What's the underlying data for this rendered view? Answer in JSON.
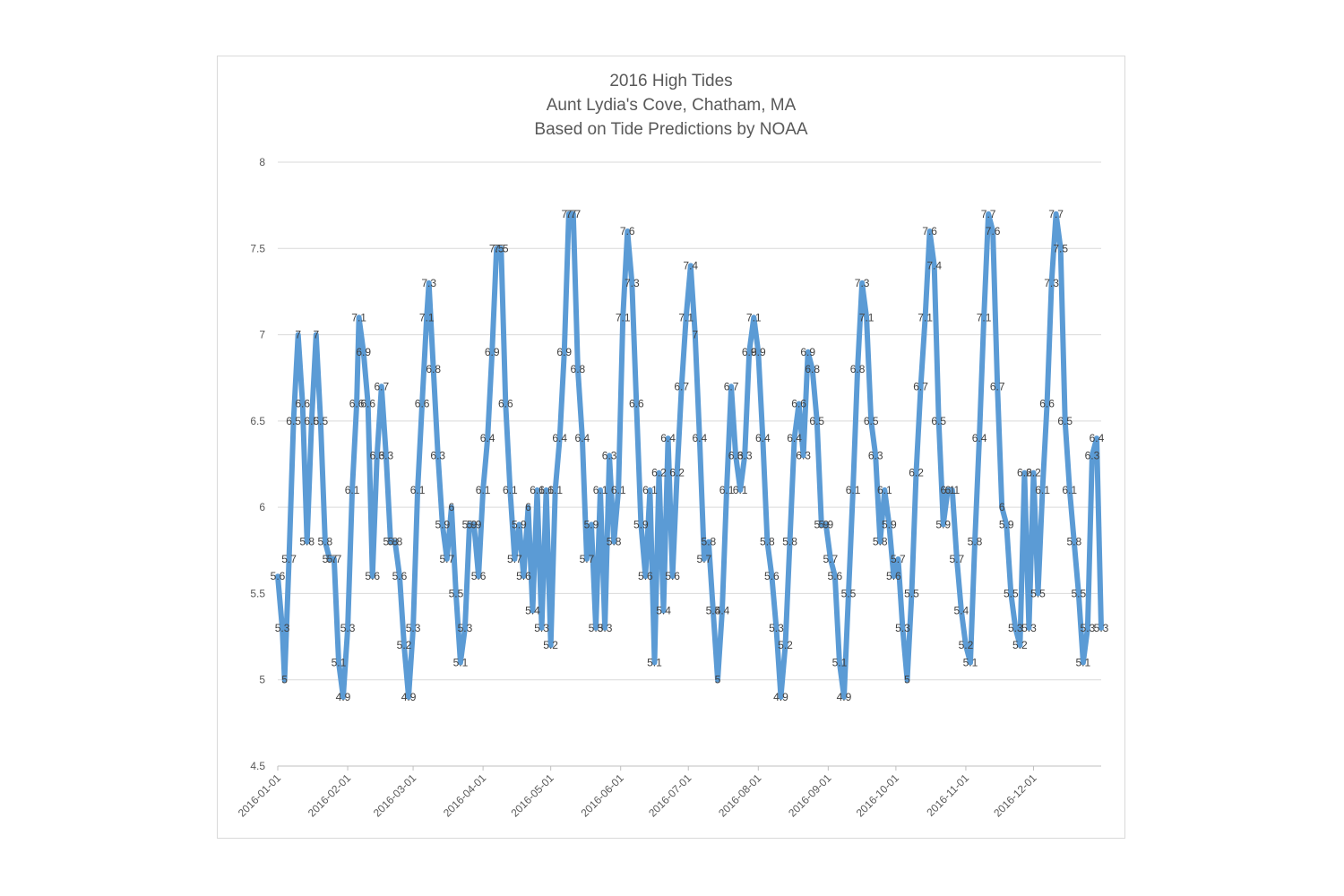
{
  "chart_data": {
    "type": "line",
    "title": [
      "2016 High Tides",
      "Aunt Lydia's Cove, Chatham, MA",
      "Based on Tide Predictions by NOAA"
    ],
    "xlabel": "",
    "ylabel": "",
    "ylim": [
      4.5,
      8
    ],
    "yticks": [
      "4.5",
      "5",
      "5.5",
      "6",
      "6.5",
      "7",
      "7.5",
      "8"
    ],
    "xlim": [
      "2016-01-01",
      "2016-12-31"
    ],
    "xticks": [
      "2016-01-01",
      "2016-02-01",
      "2016-03-01",
      "2016-04-01",
      "2016-05-01",
      "2016-06-01",
      "2016-07-01",
      "2016-08-01",
      "2016-09-01",
      "2016-10-01",
      "2016-11-01",
      "2016-12-01"
    ],
    "grid": true,
    "legend": "none",
    "series_color": "#5b9bd5",
    "label_color": "#404040",
    "series": [
      {
        "points": [
          [
            "2016-01-01",
            5.6
          ],
          [
            "2016-01-03",
            5.3
          ],
          [
            "2016-01-04",
            5.0
          ],
          [
            "2016-01-06",
            5.7
          ],
          [
            "2016-01-08",
            6.5
          ],
          [
            "2016-01-10",
            7.0
          ],
          [
            "2016-01-12",
            6.6
          ],
          [
            "2016-01-14",
            5.8
          ],
          [
            "2016-01-16",
            6.5
          ],
          [
            "2016-01-18",
            7.0
          ],
          [
            "2016-01-20",
            6.5
          ],
          [
            "2016-01-22",
            5.8
          ],
          [
            "2016-01-24",
            5.7
          ],
          [
            "2016-01-26",
            5.7
          ],
          [
            "2016-01-28",
            5.1
          ],
          [
            "2016-01-30",
            4.9
          ],
          [
            "2016-02-01",
            5.3
          ],
          [
            "2016-02-03",
            6.1
          ],
          [
            "2016-02-05",
            6.6
          ],
          [
            "2016-02-06",
            7.1
          ],
          [
            "2016-02-08",
            6.9
          ],
          [
            "2016-02-10",
            6.6
          ],
          [
            "2016-02-12",
            5.6
          ],
          [
            "2016-02-14",
            6.3
          ],
          [
            "2016-02-16",
            6.7
          ],
          [
            "2016-02-18",
            6.3
          ],
          [
            "2016-02-20",
            5.8
          ],
          [
            "2016-02-22",
            5.8
          ],
          [
            "2016-02-24",
            5.6
          ],
          [
            "2016-02-26",
            5.2
          ],
          [
            "2016-02-28",
            4.9
          ],
          [
            "2016-03-01",
            5.3
          ],
          [
            "2016-03-03",
            6.1
          ],
          [
            "2016-03-05",
            6.6
          ],
          [
            "2016-03-07",
            7.1
          ],
          [
            "2016-03-08",
            7.3
          ],
          [
            "2016-03-10",
            6.8
          ],
          [
            "2016-03-12",
            6.3
          ],
          [
            "2016-03-14",
            5.9
          ],
          [
            "2016-03-16",
            5.7
          ],
          [
            "2016-03-18",
            6.0
          ],
          [
            "2016-03-20",
            5.5
          ],
          [
            "2016-03-22",
            5.1
          ],
          [
            "2016-03-24",
            5.3
          ],
          [
            "2016-03-26",
            5.9
          ],
          [
            "2016-03-28",
            5.9
          ],
          [
            "2016-03-30",
            5.6
          ],
          [
            "2016-04-01",
            6.1
          ],
          [
            "2016-04-03",
            6.4
          ],
          [
            "2016-04-05",
            6.9
          ],
          [
            "2016-04-07",
            7.5
          ],
          [
            "2016-04-09",
            7.5
          ],
          [
            "2016-04-11",
            6.6
          ],
          [
            "2016-04-13",
            6.1
          ],
          [
            "2016-04-15",
            5.7
          ],
          [
            "2016-04-17",
            5.9
          ],
          [
            "2016-04-19",
            5.6
          ],
          [
            "2016-04-21",
            6.0
          ],
          [
            "2016-04-23",
            5.4
          ],
          [
            "2016-04-25",
            6.1
          ],
          [
            "2016-04-27",
            5.3
          ],
          [
            "2016-04-29",
            6.1
          ],
          [
            "2016-05-01",
            5.2
          ],
          [
            "2016-05-03",
            6.1
          ],
          [
            "2016-05-05",
            6.4
          ],
          [
            "2016-05-07",
            6.9
          ],
          [
            "2016-05-09",
            7.7
          ],
          [
            "2016-05-11",
            7.7
          ],
          [
            "2016-05-13",
            6.8
          ],
          [
            "2016-05-15",
            6.4
          ],
          [
            "2016-05-17",
            5.7
          ],
          [
            "2016-05-19",
            5.9
          ],
          [
            "2016-05-21",
            5.3
          ],
          [
            "2016-05-23",
            6.1
          ],
          [
            "2016-05-25",
            5.3
          ],
          [
            "2016-05-27",
            6.3
          ],
          [
            "2016-05-29",
            5.8
          ],
          [
            "2016-05-31",
            6.1
          ],
          [
            "2016-06-02",
            7.1
          ],
          [
            "2016-06-04",
            7.6
          ],
          [
            "2016-06-06",
            7.3
          ],
          [
            "2016-06-08",
            6.6
          ],
          [
            "2016-06-10",
            5.9
          ],
          [
            "2016-06-12",
            5.6
          ],
          [
            "2016-06-14",
            6.1
          ],
          [
            "2016-06-16",
            5.1
          ],
          [
            "2016-06-18",
            6.2
          ],
          [
            "2016-06-20",
            5.4
          ],
          [
            "2016-06-22",
            6.4
          ],
          [
            "2016-06-24",
            5.6
          ],
          [
            "2016-06-26",
            6.2
          ],
          [
            "2016-06-28",
            6.7
          ],
          [
            "2016-06-30",
            7.1
          ],
          [
            "2016-07-02",
            7.4
          ],
          [
            "2016-07-04",
            7.0
          ],
          [
            "2016-07-06",
            6.4
          ],
          [
            "2016-07-08",
            5.7
          ],
          [
            "2016-07-10",
            5.8
          ],
          [
            "2016-07-12",
            5.4
          ],
          [
            "2016-07-14",
            5.0
          ],
          [
            "2016-07-16",
            5.4
          ],
          [
            "2016-07-18",
            6.1
          ],
          [
            "2016-07-20",
            6.7
          ],
          [
            "2016-07-22",
            6.3
          ],
          [
            "2016-07-24",
            6.1
          ],
          [
            "2016-07-26",
            6.3
          ],
          [
            "2016-07-28",
            6.9
          ],
          [
            "2016-07-30",
            7.1
          ],
          [
            "2016-08-01",
            6.9
          ],
          [
            "2016-08-03",
            6.4
          ],
          [
            "2016-08-05",
            5.8
          ],
          [
            "2016-08-07",
            5.6
          ],
          [
            "2016-08-09",
            5.3
          ],
          [
            "2016-08-11",
            4.9
          ],
          [
            "2016-08-13",
            5.2
          ],
          [
            "2016-08-15",
            5.8
          ],
          [
            "2016-08-17",
            6.4
          ],
          [
            "2016-08-19",
            6.6
          ],
          [
            "2016-08-21",
            6.3
          ],
          [
            "2016-08-23",
            6.9
          ],
          [
            "2016-08-25",
            6.8
          ],
          [
            "2016-08-27",
            6.5
          ],
          [
            "2016-08-29",
            5.9
          ],
          [
            "2016-08-31",
            5.9
          ],
          [
            "2016-09-02",
            5.7
          ],
          [
            "2016-09-04",
            5.6
          ],
          [
            "2016-09-06",
            5.1
          ],
          [
            "2016-09-08",
            4.9
          ],
          [
            "2016-09-10",
            5.5
          ],
          [
            "2016-09-12",
            6.1
          ],
          [
            "2016-09-14",
            6.8
          ],
          [
            "2016-09-16",
            7.3
          ],
          [
            "2016-09-18",
            7.1
          ],
          [
            "2016-09-20",
            6.5
          ],
          [
            "2016-09-22",
            6.3
          ],
          [
            "2016-09-24",
            5.8
          ],
          [
            "2016-09-26",
            6.1
          ],
          [
            "2016-09-28",
            5.9
          ],
          [
            "2016-09-30",
            5.6
          ],
          [
            "2016-10-02",
            5.7
          ],
          [
            "2016-10-04",
            5.3
          ],
          [
            "2016-10-06",
            5.0
          ],
          [
            "2016-10-08",
            5.5
          ],
          [
            "2016-10-10",
            6.2
          ],
          [
            "2016-10-12",
            6.7
          ],
          [
            "2016-10-14",
            7.1
          ],
          [
            "2016-10-16",
            7.6
          ],
          [
            "2016-10-18",
            7.4
          ],
          [
            "2016-10-20",
            6.5
          ],
          [
            "2016-10-22",
            5.9
          ],
          [
            "2016-10-24",
            6.1
          ],
          [
            "2016-10-26",
            6.1
          ],
          [
            "2016-10-28",
            5.7
          ],
          [
            "2016-10-30",
            5.4
          ],
          [
            "2016-11-01",
            5.2
          ],
          [
            "2016-11-03",
            5.1
          ],
          [
            "2016-11-05",
            5.8
          ],
          [
            "2016-11-07",
            6.4
          ],
          [
            "2016-11-09",
            7.1
          ],
          [
            "2016-11-11",
            7.7
          ],
          [
            "2016-11-13",
            7.6
          ],
          [
            "2016-11-15",
            6.7
          ],
          [
            "2016-11-17",
            6.0
          ],
          [
            "2016-11-19",
            5.9
          ],
          [
            "2016-11-21",
            5.5
          ],
          [
            "2016-11-23",
            5.3
          ],
          [
            "2016-11-25",
            5.2
          ],
          [
            "2016-11-27",
            6.2
          ],
          [
            "2016-11-29",
            5.3
          ],
          [
            "2016-12-01",
            6.2
          ],
          [
            "2016-12-03",
            5.5
          ],
          [
            "2016-12-05",
            6.1
          ],
          [
            "2016-12-07",
            6.6
          ],
          [
            "2016-12-09",
            7.3
          ],
          [
            "2016-12-11",
            7.7
          ],
          [
            "2016-12-13",
            7.5
          ],
          [
            "2016-12-15",
            6.5
          ],
          [
            "2016-12-17",
            6.1
          ],
          [
            "2016-12-19",
            5.8
          ],
          [
            "2016-12-21",
            5.5
          ],
          [
            "2016-12-23",
            5.1
          ],
          [
            "2016-12-25",
            5.3
          ],
          [
            "2016-12-27",
            6.3
          ],
          [
            "2016-12-29",
            6.4
          ],
          [
            "2016-12-31",
            5.3
          ]
        ]
      }
    ]
  }
}
